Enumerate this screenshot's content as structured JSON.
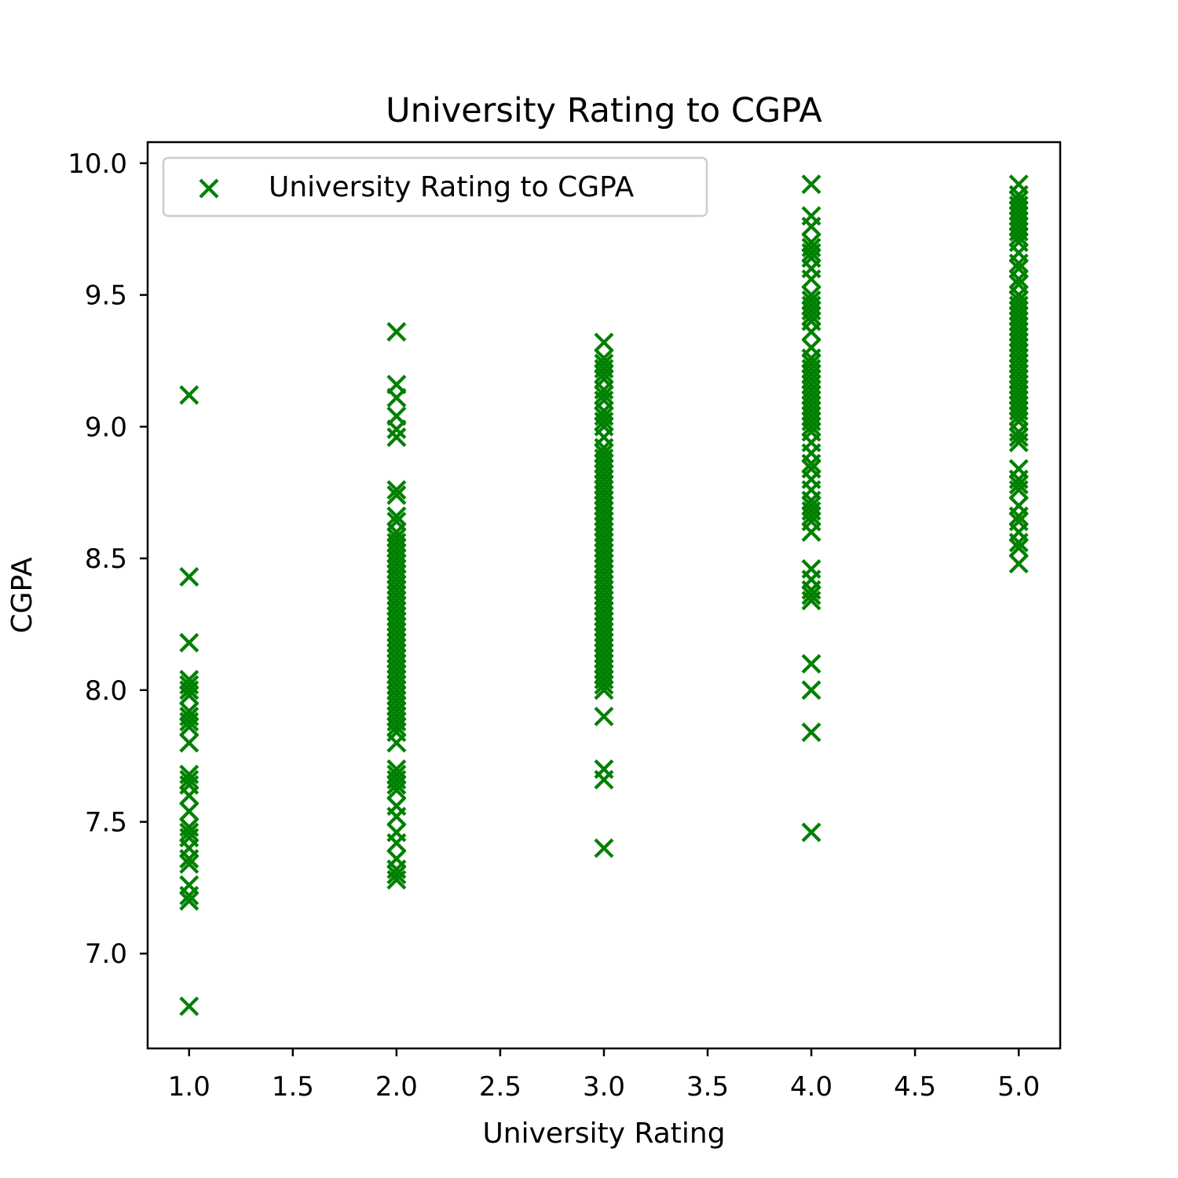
{
  "chart_data": {
    "type": "scatter",
    "title": "University Rating to CGPA",
    "xlabel": "University Rating",
    "ylabel": "CGPA",
    "xlim": [
      0.8,
      5.2
    ],
    "ylim": [
      6.64,
      10.08
    ],
    "xticks": [
      "1.0",
      "1.5",
      "2.0",
      "2.5",
      "3.0",
      "3.5",
      "4.0",
      "4.5",
      "5.0"
    ],
    "yticks": [
      "7.0",
      "7.5",
      "8.0",
      "8.5",
      "9.0",
      "9.5",
      "10.0"
    ],
    "grid": false,
    "legend": {
      "placement": "top-left",
      "entries": [
        "University Rating to CGPA"
      ]
    },
    "marker": "x",
    "color": "#008000",
    "series": [
      {
        "name": "University Rating to CGPA",
        "points": [
          [
            1,
            9.12
          ],
          [
            1,
            8.43
          ],
          [
            1,
            8.18
          ],
          [
            1,
            8.04
          ],
          [
            1,
            8.02
          ],
          [
            1,
            8.0
          ],
          [
            1,
            7.98
          ],
          [
            1,
            7.92
          ],
          [
            1,
            7.9
          ],
          [
            1,
            7.88
          ],
          [
            1,
            7.86
          ],
          [
            1,
            7.8
          ],
          [
            1,
            7.68
          ],
          [
            1,
            7.66
          ],
          [
            1,
            7.64
          ],
          [
            1,
            7.6
          ],
          [
            1,
            7.54
          ],
          [
            1,
            7.48
          ],
          [
            1,
            7.46
          ],
          [
            1,
            7.44
          ],
          [
            1,
            7.4
          ],
          [
            1,
            7.36
          ],
          [
            1,
            7.34
          ],
          [
            1,
            7.26
          ],
          [
            1,
            7.22
          ],
          [
            1,
            7.2
          ],
          [
            1,
            6.8
          ],
          [
            2,
            9.36
          ],
          [
            2,
            9.16
          ],
          [
            2,
            9.11
          ],
          [
            2,
            9.04
          ],
          [
            2,
            8.99
          ],
          [
            2,
            8.96
          ],
          [
            2,
            8.76
          ],
          [
            2,
            8.74
          ],
          [
            2,
            8.66
          ],
          [
            2,
            8.64
          ],
          [
            2,
            8.6
          ],
          [
            2,
            8.58
          ],
          [
            2,
            8.56
          ],
          [
            2,
            8.54
          ],
          [
            2,
            8.52
          ],
          [
            2,
            8.5
          ],
          [
            2,
            8.48
          ],
          [
            2,
            8.46
          ],
          [
            2,
            8.44
          ],
          [
            2,
            8.42
          ],
          [
            2,
            8.4
          ],
          [
            2,
            8.38
          ],
          [
            2,
            8.36
          ],
          [
            2,
            8.34
          ],
          [
            2,
            8.32
          ],
          [
            2,
            8.3
          ],
          [
            2,
            8.28
          ],
          [
            2,
            8.26
          ],
          [
            2,
            8.24
          ],
          [
            2,
            8.22
          ],
          [
            2,
            8.2
          ],
          [
            2,
            8.18
          ],
          [
            2,
            8.16
          ],
          [
            2,
            8.14
          ],
          [
            2,
            8.12
          ],
          [
            2,
            8.1
          ],
          [
            2,
            8.08
          ],
          [
            2,
            8.06
          ],
          [
            2,
            8.04
          ],
          [
            2,
            8.02
          ],
          [
            2,
            8.0
          ],
          [
            2,
            7.98
          ],
          [
            2,
            7.96
          ],
          [
            2,
            7.94
          ],
          [
            2,
            7.92
          ],
          [
            2,
            7.9
          ],
          [
            2,
            7.88
          ],
          [
            2,
            7.86
          ],
          [
            2,
            7.84
          ],
          [
            2,
            7.8
          ],
          [
            2,
            7.7
          ],
          [
            2,
            7.68
          ],
          [
            2,
            7.66
          ],
          [
            2,
            7.64
          ],
          [
            2,
            7.62
          ],
          [
            2,
            7.56
          ],
          [
            2,
            7.52
          ],
          [
            2,
            7.46
          ],
          [
            2,
            7.42
          ],
          [
            2,
            7.36
          ],
          [
            2,
            7.32
          ],
          [
            2,
            7.3
          ],
          [
            2,
            7.28
          ],
          [
            3,
            9.32
          ],
          [
            3,
            9.26
          ],
          [
            3,
            9.24
          ],
          [
            3,
            9.22
          ],
          [
            3,
            9.2
          ],
          [
            3,
            9.18
          ],
          [
            3,
            9.14
          ],
          [
            3,
            9.12
          ],
          [
            3,
            9.1
          ],
          [
            3,
            9.06
          ],
          [
            3,
            9.04
          ],
          [
            3,
            9.02
          ],
          [
            3,
            9.0
          ],
          [
            3,
            8.96
          ],
          [
            3,
            8.92
          ],
          [
            3,
            8.9
          ],
          [
            3,
            8.88
          ],
          [
            3,
            8.86
          ],
          [
            3,
            8.84
          ],
          [
            3,
            8.82
          ],
          [
            3,
            8.8
          ],
          [
            3,
            8.78
          ],
          [
            3,
            8.76
          ],
          [
            3,
            8.74
          ],
          [
            3,
            8.72
          ],
          [
            3,
            8.7
          ],
          [
            3,
            8.68
          ],
          [
            3,
            8.66
          ],
          [
            3,
            8.64
          ],
          [
            3,
            8.62
          ],
          [
            3,
            8.6
          ],
          [
            3,
            8.58
          ],
          [
            3,
            8.56
          ],
          [
            3,
            8.54
          ],
          [
            3,
            8.52
          ],
          [
            3,
            8.5
          ],
          [
            3,
            8.48
          ],
          [
            3,
            8.46
          ],
          [
            3,
            8.44
          ],
          [
            3,
            8.42
          ],
          [
            3,
            8.4
          ],
          [
            3,
            8.38
          ],
          [
            3,
            8.36
          ],
          [
            3,
            8.34
          ],
          [
            3,
            8.32
          ],
          [
            3,
            8.3
          ],
          [
            3,
            8.28
          ],
          [
            3,
            8.26
          ],
          [
            3,
            8.24
          ],
          [
            3,
            8.22
          ],
          [
            3,
            8.2
          ],
          [
            3,
            8.18
          ],
          [
            3,
            8.16
          ],
          [
            3,
            8.14
          ],
          [
            3,
            8.12
          ],
          [
            3,
            8.1
          ],
          [
            3,
            8.08
          ],
          [
            3,
            8.06
          ],
          [
            3,
            8.04
          ],
          [
            3,
            8.02
          ],
          [
            3,
            8.0
          ],
          [
            3,
            7.9
          ],
          [
            3,
            7.7
          ],
          [
            3,
            7.66
          ],
          [
            3,
            7.4
          ],
          [
            4,
            9.92
          ],
          [
            4,
            9.8
          ],
          [
            4,
            9.76
          ],
          [
            4,
            9.7
          ],
          [
            4,
            9.68
          ],
          [
            4,
            9.66
          ],
          [
            4,
            9.64
          ],
          [
            4,
            9.6
          ],
          [
            4,
            9.56
          ],
          [
            4,
            9.5
          ],
          [
            4,
            9.48
          ],
          [
            4,
            9.46
          ],
          [
            4,
            9.44
          ],
          [
            4,
            9.42
          ],
          [
            4,
            9.4
          ],
          [
            4,
            9.36
          ],
          [
            4,
            9.3
          ],
          [
            4,
            9.26
          ],
          [
            4,
            9.24
          ],
          [
            4,
            9.22
          ],
          [
            4,
            9.2
          ],
          [
            4,
            9.18
          ],
          [
            4,
            9.16
          ],
          [
            4,
            9.14
          ],
          [
            4,
            9.12
          ],
          [
            4,
            9.1
          ],
          [
            4,
            9.08
          ],
          [
            4,
            9.06
          ],
          [
            4,
            9.04
          ],
          [
            4,
            9.02
          ],
          [
            4,
            9.0
          ],
          [
            4,
            8.98
          ],
          [
            4,
            8.94
          ],
          [
            4,
            8.9
          ],
          [
            4,
            8.86
          ],
          [
            4,
            8.84
          ],
          [
            4,
            8.8
          ],
          [
            4,
            8.76
          ],
          [
            4,
            8.72
          ],
          [
            4,
            8.7
          ],
          [
            4,
            8.68
          ],
          [
            4,
            8.66
          ],
          [
            4,
            8.64
          ],
          [
            4,
            8.6
          ],
          [
            4,
            8.46
          ],
          [
            4,
            8.42
          ],
          [
            4,
            8.38
          ],
          [
            4,
            8.36
          ],
          [
            4,
            8.34
          ],
          [
            4,
            8.1
          ],
          [
            4,
            8.0
          ],
          [
            4,
            7.84
          ],
          [
            4,
            7.46
          ],
          [
            5,
            9.92
          ],
          [
            5,
            9.88
          ],
          [
            5,
            9.86
          ],
          [
            5,
            9.84
          ],
          [
            5,
            9.82
          ],
          [
            5,
            9.8
          ],
          [
            5,
            9.78
          ],
          [
            5,
            9.76
          ],
          [
            5,
            9.74
          ],
          [
            5,
            9.72
          ],
          [
            5,
            9.7
          ],
          [
            5,
            9.66
          ],
          [
            5,
            9.62
          ],
          [
            5,
            9.6
          ],
          [
            5,
            9.56
          ],
          [
            5,
            9.54
          ],
          [
            5,
            9.5
          ],
          [
            5,
            9.48
          ],
          [
            5,
            9.46
          ],
          [
            5,
            9.44
          ],
          [
            5,
            9.42
          ],
          [
            5,
            9.4
          ],
          [
            5,
            9.38
          ],
          [
            5,
            9.36
          ],
          [
            5,
            9.34
          ],
          [
            5,
            9.32
          ],
          [
            5,
            9.3
          ],
          [
            5,
            9.28
          ],
          [
            5,
            9.26
          ],
          [
            5,
            9.24
          ],
          [
            5,
            9.22
          ],
          [
            5,
            9.2
          ],
          [
            5,
            9.18
          ],
          [
            5,
            9.16
          ],
          [
            5,
            9.14
          ],
          [
            5,
            9.12
          ],
          [
            5,
            9.1
          ],
          [
            5,
            9.08
          ],
          [
            5,
            9.06
          ],
          [
            5,
            9.04
          ],
          [
            5,
            9.02
          ],
          [
            5,
            8.98
          ],
          [
            5,
            8.96
          ],
          [
            5,
            8.94
          ],
          [
            5,
            8.84
          ],
          [
            5,
            8.8
          ],
          [
            5,
            8.78
          ],
          [
            5,
            8.76
          ],
          [
            5,
            8.7
          ],
          [
            5,
            8.66
          ],
          [
            5,
            8.64
          ],
          [
            5,
            8.6
          ],
          [
            5,
            8.56
          ],
          [
            5,
            8.54
          ],
          [
            5,
            8.48
          ]
        ]
      }
    ]
  }
}
